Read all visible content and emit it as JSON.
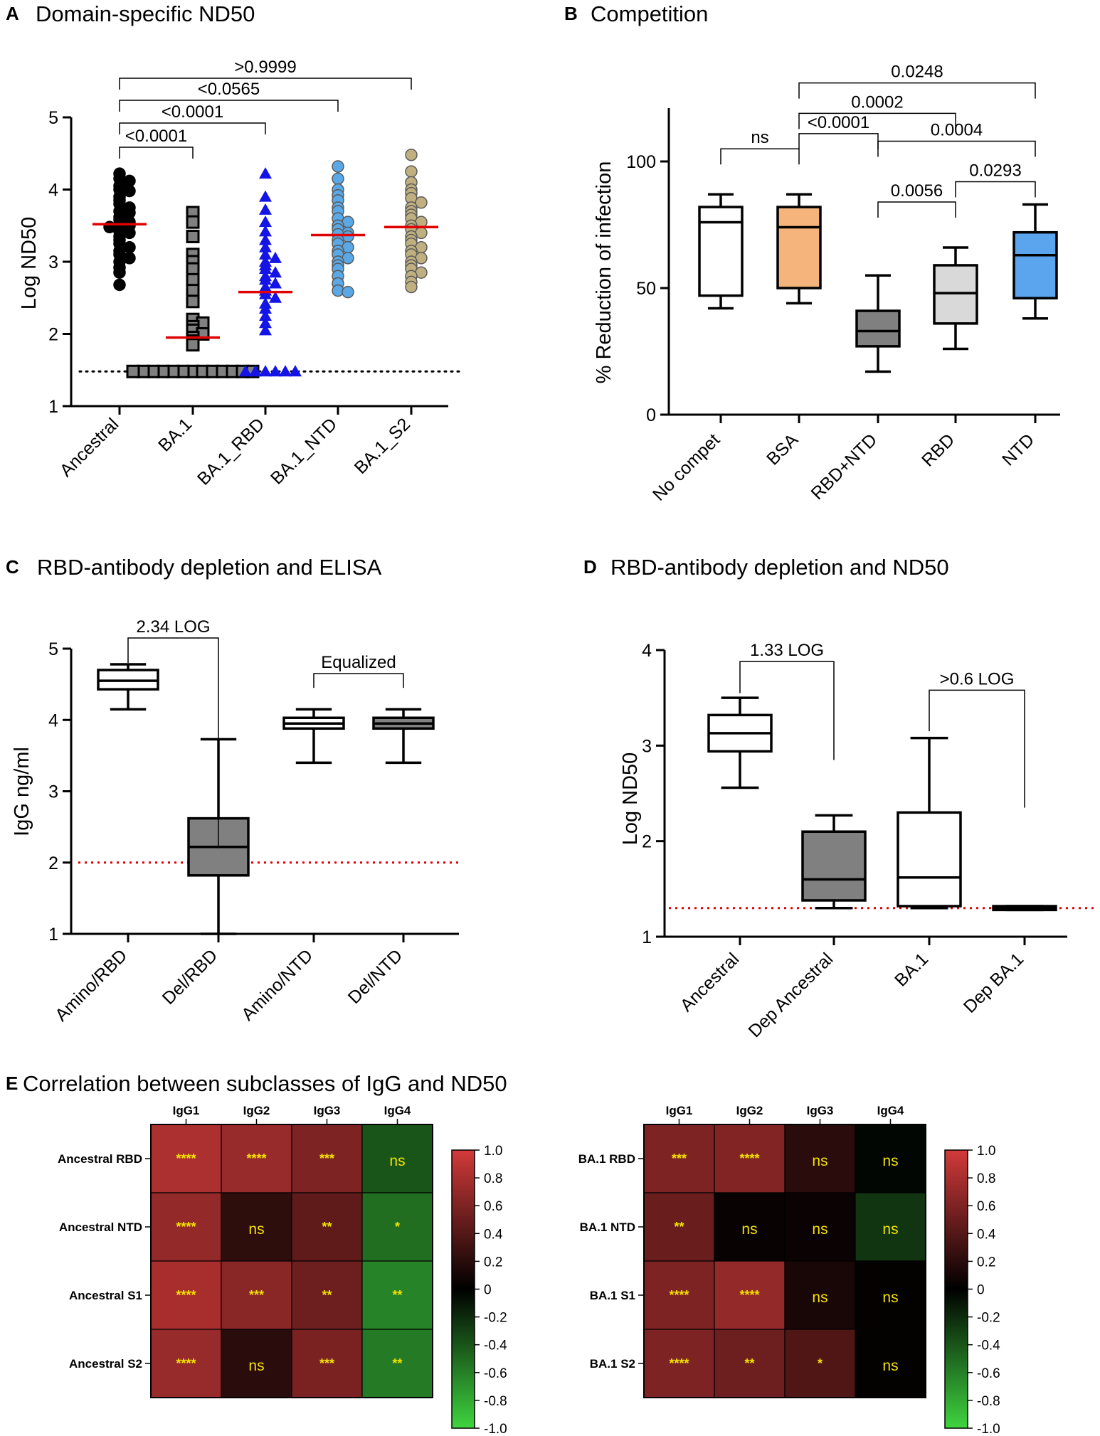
{
  "chart_data": [
    {
      "id": "A",
      "type": "scatter",
      "letter": "A",
      "title": "Domain-specific ND50",
      "ylabel": "Log ND50",
      "ylim": [
        1,
        5
      ],
      "yticks": [
        1,
        2,
        3,
        4,
        5
      ],
      "dotted_line": 1.48,
      "categories": [
        "Ancestral",
        "BA.1",
        "BA.1_RBD",
        "BA.1_NTD",
        "BA.1_S2"
      ],
      "series": [
        {
          "name": "Ancestral",
          "marker": "circle",
          "color": "#000000",
          "median": 3.52,
          "values": [
            4.22,
            4.15,
            4.12,
            4.05,
            4.0,
            3.98,
            3.9,
            3.85,
            3.8,
            3.75,
            3.7,
            3.68,
            3.62,
            3.58,
            3.55,
            3.52,
            3.5,
            3.48,
            3.42,
            3.4,
            3.35,
            3.3,
            3.25,
            3.2,
            3.15,
            3.1,
            3.05,
            3.0,
            2.92,
            2.85,
            2.68
          ]
        },
        {
          "name": "BA.1",
          "marker": "square",
          "color": "#808080",
          "median": 1.95,
          "values": [
            3.68,
            3.55,
            3.35,
            3.1,
            3.0,
            2.9,
            2.75,
            2.6,
            2.45,
            2.2,
            2.15,
            2.1,
            2.05,
            2.0,
            1.95,
            1.9,
            1.85,
            1.48,
            1.48,
            1.48,
            1.48,
            1.48,
            1.48,
            1.48,
            1.48,
            1.48,
            1.48,
            1.48,
            1.48,
            1.48
          ]
        },
        {
          "name": "BA.1_RBD",
          "marker": "triangle",
          "color": "#1414e6",
          "median": 2.58,
          "values": [
            4.22,
            3.9,
            3.72,
            3.55,
            3.42,
            3.3,
            3.2,
            3.1,
            3.05,
            3.0,
            2.95,
            2.9,
            2.85,
            2.8,
            2.75,
            2.7,
            2.65,
            2.6,
            2.55,
            2.5,
            2.42,
            2.35,
            2.25,
            2.15,
            2.05,
            1.48,
            1.48,
            1.48,
            1.48,
            1.48,
            1.48
          ]
        },
        {
          "name": "BA.1_NTD",
          "marker": "circle",
          "color": "#5aa8e6",
          "median": 3.37,
          "values": [
            4.32,
            4.15,
            4.0,
            3.92,
            3.85,
            3.75,
            3.7,
            3.6,
            3.55,
            3.5,
            3.45,
            3.4,
            3.38,
            3.35,
            3.3,
            3.25,
            3.2,
            3.15,
            3.1,
            3.05,
            3.0,
            2.95,
            2.9,
            2.8,
            2.7,
            2.6,
            2.58
          ]
        },
        {
          "name": "BA.1_S2",
          "marker": "circle",
          "color": "#c0b080",
          "median": 3.48,
          "values": [
            4.48,
            4.25,
            4.1,
            4.0,
            3.95,
            3.88,
            3.82,
            3.75,
            3.7,
            3.65,
            3.6,
            3.55,
            3.5,
            3.45,
            3.4,
            3.35,
            3.3,
            3.25,
            3.2,
            3.15,
            3.1,
            3.05,
            3.0,
            2.95,
            2.9,
            2.85,
            2.8,
            2.72,
            2.65
          ]
        }
      ],
      "comparisons": [
        {
          "from": 0,
          "to": 4,
          "label": ">0.9999",
          "level": 4
        },
        {
          "from": 0,
          "to": 3,
          "label": "<0.0565",
          "level": 3
        },
        {
          "from": 0,
          "to": 2,
          "label": "<0.0001",
          "level": 2
        },
        {
          "from": 0,
          "to": 1,
          "label": "<0.0001",
          "level": 1
        }
      ]
    },
    {
      "id": "B",
      "type": "box",
      "letter": "B",
      "title": "Competition",
      "ylabel": "% Reduction of infection",
      "ylim": [
        0,
        120
      ],
      "yticks": [
        0,
        50,
        100
      ],
      "categories": [
        "No compet",
        "BSA",
        "RBD+NTD",
        "RBD",
        "NTD"
      ],
      "boxes": [
        {
          "name": "No compet",
          "min": 42,
          "q1": 47,
          "median": 76,
          "q3": 82,
          "max": 87,
          "fill": "#ffffff"
        },
        {
          "name": "BSA",
          "min": 44,
          "q1": 50,
          "median": 74,
          "q3": 82,
          "max": 87,
          "fill": "#f4b47c"
        },
        {
          "name": "RBD+NTD",
          "min": 17,
          "q1": 27,
          "median": 33,
          "q3": 41,
          "max": 55,
          "fill": "#808080"
        },
        {
          "name": "RBD",
          "min": 26,
          "q1": 36,
          "median": 48,
          "q3": 59,
          "max": 66,
          "fill": "#d9d9d9"
        },
        {
          "name": "NTD",
          "min": 38,
          "q1": 46,
          "median": 63,
          "q3": 72,
          "max": 83,
          "fill": "#5ba4ee"
        }
      ],
      "comparisons": [
        {
          "from": 0,
          "to": 1,
          "label": "ns",
          "ybar": 105
        },
        {
          "from": 1,
          "to": 2,
          "label": "<0.0001",
          "ybar": 111
        },
        {
          "from": 1,
          "to": 3,
          "label": "0.0002",
          "ybar": 119
        },
        {
          "from": 1,
          "to": 4,
          "label": "0.0248",
          "ybar": 131
        },
        {
          "from": 2,
          "to": 4,
          "label": "0.0004",
          "ybar": 108
        },
        {
          "from": 2,
          "to": 3,
          "label": "0.0056",
          "ybar": 84
        },
        {
          "from": 3,
          "to": 4,
          "label": "0.0293",
          "ybar": 92
        }
      ]
    },
    {
      "id": "C",
      "type": "box",
      "letter": "C",
      "title": "RBD-antibody depletion and ELISA",
      "ylabel": "IgG ng/ml",
      "ylim": [
        1,
        5
      ],
      "yticks": [
        1,
        2,
        3,
        4,
        5
      ],
      "dotted_line": 2.0,
      "categories": [
        "Amino/RBD",
        "Del/RBD",
        "Amino/NTD",
        "Del/NTD"
      ],
      "boxes": [
        {
          "name": "Amino/RBD",
          "min": 4.15,
          "q1": 4.43,
          "median": 4.55,
          "q3": 4.7,
          "max": 4.78,
          "fill": "#ffffff"
        },
        {
          "name": "Del/RBD",
          "min": 1.0,
          "q1": 1.82,
          "median": 2.22,
          "q3": 2.62,
          "max": 3.73,
          "fill": "#808080"
        },
        {
          "name": "Amino/NTD",
          "min": 3.4,
          "q1": 3.88,
          "median": 3.95,
          "q3": 4.03,
          "max": 4.15,
          "fill": "#ffffff"
        },
        {
          "name": "Del/NTD",
          "min": 3.4,
          "q1": 3.88,
          "median": 3.95,
          "q3": 4.03,
          "max": 4.15,
          "fill": "#808080"
        }
      ],
      "comparisons": [
        {
          "from": 0,
          "to": 1,
          "label": "2.34 LOG",
          "ybar": 5.15,
          "drop_to": [
            4.8,
            2.2
          ]
        },
        {
          "from": 2,
          "to": 3,
          "label": "Equalized",
          "ybar": 4.65,
          "drop_to": [
            4.45,
            4.45
          ]
        }
      ]
    },
    {
      "id": "D",
      "type": "box",
      "letter": "D",
      "title": "RBD-antibody depletion and ND50",
      "ylabel": "Log ND50",
      "ylim": [
        1,
        4
      ],
      "yticks": [
        1,
        2,
        3,
        4
      ],
      "dotted_line": 1.3,
      "categories": [
        "Ancestral",
        "Dep Ancestral",
        "BA.1",
        "Dep BA.1"
      ],
      "boxes": [
        {
          "name": "Ancestral",
          "min": 2.56,
          "q1": 2.94,
          "median": 3.13,
          "q3": 3.32,
          "max": 3.5,
          "fill": "#ffffff"
        },
        {
          "name": "Dep Ancestral",
          "min": 1.3,
          "q1": 1.38,
          "median": 1.6,
          "q3": 2.1,
          "max": 2.27,
          "fill": "#808080"
        },
        {
          "name": "BA.1",
          "min": 1.3,
          "q1": 1.32,
          "median": 1.62,
          "q3": 2.3,
          "max": 3.08,
          "fill": "#ffffff"
        },
        {
          "name": "Dep BA.1",
          "min": 1.28,
          "q1": 1.28,
          "median": 1.3,
          "q3": 1.32,
          "max": 1.32,
          "fill": "#000000"
        }
      ],
      "comparisons": [
        {
          "from": 0,
          "to": 1,
          "label": "1.33 LOG",
          "ybar": 3.88,
          "drop_to": [
            3.55,
            2.85
          ]
        },
        {
          "from": 2,
          "to": 3,
          "label": ">0.6 LOG",
          "ybar": 3.58,
          "drop_to": [
            3.15,
            2.35
          ]
        }
      ]
    },
    {
      "id": "E",
      "type": "heatmap",
      "letter": "E",
      "title": "Correlation between subclasses of IgG and ND50",
      "colorbar": {
        "min": -1.0,
        "max": 1.0,
        "ticks": [
          "1.0",
          "0.8",
          "0.6",
          "0.4",
          "0.2",
          "0",
          "-0.2",
          "-0.4",
          "-0.6",
          "-0.8",
          "-1.0"
        ]
      },
      "maps": [
        {
          "columns": [
            "IgG1",
            "IgG2",
            "IgG3",
            "IgG4"
          ],
          "rows": [
            "Ancestral RBD",
            "Ancestral NTD",
            "Ancestral S1",
            "Ancestral S2"
          ],
          "values": [
            [
              0.82,
              0.72,
              0.6,
              -0.4
            ],
            [
              0.7,
              0.22,
              0.45,
              -0.52
            ],
            [
              0.8,
              0.65,
              0.52,
              -0.62
            ],
            [
              0.72,
              0.2,
              0.58,
              -0.58
            ]
          ],
          "labels": [
            [
              "****",
              "****",
              "***",
              "ns"
            ],
            [
              "****",
              "ns",
              "**",
              "*"
            ],
            [
              "****",
              "***",
              "**",
              "**"
            ],
            [
              "****",
              "ns",
              "***",
              "**"
            ]
          ]
        },
        {
          "columns": [
            "IgG1",
            "IgG2",
            "IgG3",
            "IgG4"
          ],
          "rows": [
            "BA.1 RBD",
            "BA.1 NTD",
            "BA.1 S1",
            "BA.1 S2"
          ],
          "values": [
            [
              0.6,
              0.62,
              0.2,
              -0.03
            ],
            [
              0.5,
              0.04,
              0.05,
              -0.25
            ],
            [
              0.6,
              0.7,
              0.12,
              0.02
            ],
            [
              0.6,
              0.52,
              0.38,
              0.02
            ]
          ],
          "labels": [
            [
              "***",
              "****",
              "ns",
              "ns"
            ],
            [
              "**",
              "ns",
              "ns",
              "ns"
            ],
            [
              "****",
              "****",
              "ns",
              "ns"
            ],
            [
              "****",
              "**",
              "*",
              "ns"
            ]
          ]
        }
      ]
    }
  ]
}
